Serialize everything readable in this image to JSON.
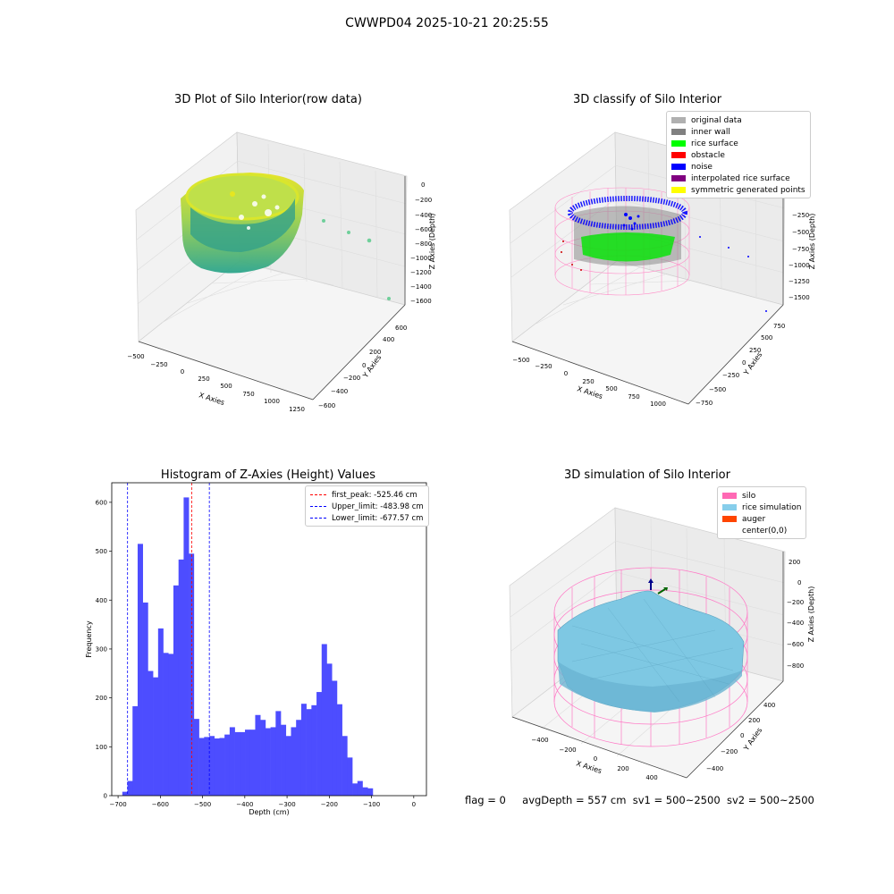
{
  "suptitle": "CWWPD04 2025-10-21 20:25:55",
  "panel1": {
    "title": "3D Plot of Silo Interior(row data)",
    "xlabel": "X Axies",
    "ylabel": "Y Axies",
    "zlabel": "Z Axies (Depth)",
    "xticks": [
      "−500",
      "−250",
      "0",
      "250",
      "500",
      "750",
      "1000",
      "1250"
    ],
    "yticks": [
      "−600",
      "−400",
      "−200",
      "0",
      "200",
      "400",
      "600"
    ],
    "zticks": [
      "0",
      "−200",
      "−400",
      "−600",
      "−800",
      "−1000",
      "−1200",
      "−1400",
      "−1600"
    ]
  },
  "panel2": {
    "title": "3D classify of Silo Interior",
    "xlabel": "X Axies",
    "ylabel": "Y Axies",
    "zlabel": "Z Axies (Depth)",
    "xticks": [
      "−500",
      "−250",
      "0",
      "250",
      "500",
      "750",
      "1000"
    ],
    "yticks": [
      "−750",
      "−500",
      "−250",
      "0",
      "250",
      "500",
      "750"
    ],
    "zticks": [
      "250",
      "0",
      "−250",
      "−500",
      "−750",
      "−1000",
      "−1250",
      "−1500"
    ],
    "legend": [
      {
        "label": "original data",
        "color": "#b0b0b0"
      },
      {
        "label": "inner wall",
        "color": "#808080"
      },
      {
        "label": "rice surface",
        "color": "#00ff00"
      },
      {
        "label": "obstacle",
        "color": "#ff0000"
      },
      {
        "label": "noise",
        "color": "#0000ff"
      },
      {
        "label": "interpolated rice surface",
        "color": "#800080"
      },
      {
        "label": "symmetric generated points",
        "color": "#ffff00"
      }
    ]
  },
  "panel4": {
    "title": "3D simulation of Silo Interior",
    "xlabel": "X Axies",
    "ylabel": "Y Axies",
    "zlabel": "Z Axies (Depth)",
    "xticks": [
      "−400",
      "−200",
      "0",
      "200",
      "400"
    ],
    "yticks": [
      "−400",
      "−200",
      "0",
      "200",
      "400"
    ],
    "zticks": [
      "200",
      "0",
      "−200",
      "−400",
      "−600",
      "−800"
    ],
    "legend": [
      {
        "label": "silo",
        "color": "#ff69b4"
      },
      {
        "label": "rice simulation",
        "color": "#87ceeb"
      },
      {
        "label": "auger",
        "color": "#ff4500"
      },
      {
        "label": "center(0,0)",
        "color": "#ffffff"
      }
    ]
  },
  "status": {
    "flag": "flag = 0",
    "avg": "avgDepth = 557 cm",
    "sv1": "sv1 = 500~2500",
    "sv2": "sv2 = 500~2500"
  },
  "chart_data": {
    "type": "bar",
    "title": "Histogram of Z-Axies (Height) Values",
    "xlabel": "Depth (cm)",
    "ylabel": "Frequency",
    "xlim": [
      -715,
      30
    ],
    "ylim": [
      0,
      640
    ],
    "xticks": [
      -700,
      -600,
      -500,
      -400,
      -300,
      -200,
      -100,
      0
    ],
    "yticks": [
      0,
      100,
      200,
      300,
      400,
      500,
      600
    ],
    "bin_width": 12.1,
    "bins_start": -690,
    "values": [
      8,
      30,
      183,
      515,
      395,
      255,
      242,
      342,
      292,
      290,
      430,
      483,
      610,
      495,
      157,
      118,
      120,
      122,
      117,
      118,
      125,
      140,
      130,
      130,
      135,
      135,
      165,
      155,
      138,
      140,
      173,
      145,
      122,
      140,
      155,
      188,
      177,
      185,
      212,
      310,
      270,
      235,
      187,
      122,
      78,
      25,
      30,
      17,
      15
    ],
    "bar_color": "#4d4dff",
    "vlines": [
      {
        "label": "first_peak: -525.46 cm",
        "x": -525.46,
        "color": "#ff0000"
      },
      {
        "label": "Upper_limit: -483.98 cm",
        "x": -483.98,
        "color": "#0000ff"
      },
      {
        "label": "Lower_limit: -677.57 cm",
        "x": -677.57,
        "color": "#0000ff"
      }
    ],
    "legend_position": "top-right",
    "grid": false
  }
}
